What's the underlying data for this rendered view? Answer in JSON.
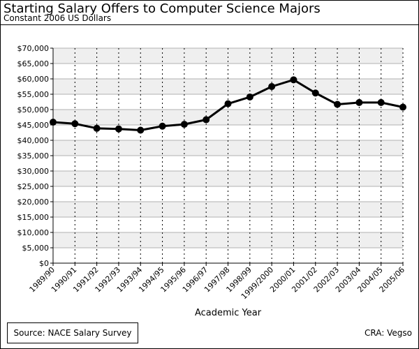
{
  "header": {
    "title": "Starting Salary Offers to Computer Science Majors",
    "subtitle": "Constant 2006 US Dollars"
  },
  "footer": {
    "source": "Source: NACE Salary Survey",
    "credit": "CRA: Vegso"
  },
  "chart_data": {
    "type": "line",
    "title": "Starting Salary Offers to Computer Science Majors",
    "subtitle": "Constant 2006 US Dollars",
    "xlabel": "Academic Year",
    "ylabel": "",
    "categories": [
      "1989/90",
      "1990/91",
      "1991/92",
      "1992/93",
      "1993/94",
      "1994/95",
      "1995/96",
      "1996/97",
      "1997/98",
      "1998/99",
      "1999/2000",
      "2000/01",
      "2001/02",
      "2002/03",
      "2003/04",
      "2004/05",
      "2005/06"
    ],
    "series": [
      {
        "values": [
          45900,
          45400,
          43900,
          43700,
          43300,
          44600,
          45200,
          46700,
          51900,
          54100,
          57500,
          59700,
          55400,
          51700,
          52300,
          52300,
          50800
        ]
      }
    ],
    "ylim": [
      0,
      70000
    ],
    "yticks": [
      0,
      5000,
      10000,
      15000,
      20000,
      25000,
      30000,
      35000,
      40000,
      45000,
      50000,
      55000,
      60000,
      65000,
      70000
    ],
    "ytick_labels": [
      "$0",
      "$5,000",
      "$10,000",
      "$15,000",
      "$20,000",
      "$25,000",
      "$30,000",
      "$35,000",
      "$40,000",
      "$45,000",
      "$50,000",
      "$55,000",
      "$60,000",
      "$65,000",
      "$70,000"
    ],
    "grid": true,
    "band_fill": "#efefef",
    "line_color": "#000000"
  }
}
